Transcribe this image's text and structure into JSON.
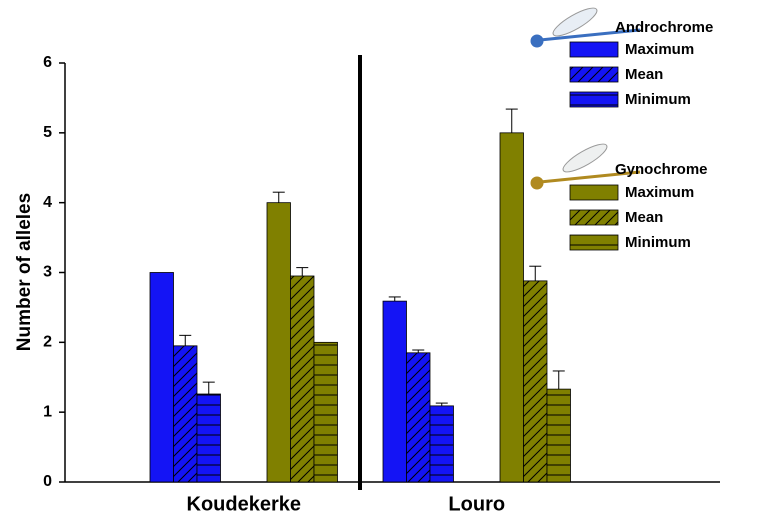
{
  "chart_data": {
    "type": "bar",
    "ylabel": "Number of alleles",
    "categories": [
      "Koudekerke",
      "Louro"
    ],
    "ylim": [
      0,
      6
    ],
    "yticks": [
      0,
      1,
      2,
      3,
      4,
      5,
      6
    ],
    "legend_titles": [
      "Androchrome",
      "Gynochrome"
    ],
    "series": [
      {
        "name": "Maximum",
        "color": "#1414f5",
        "pattern": "solid",
        "values": [
          3.0,
          2.59
        ],
        "errors": [
          0,
          0.06
        ]
      },
      {
        "name": "Mean",
        "color": "#1414f5",
        "pattern": "diagonal",
        "values": [
          1.95,
          1.85
        ],
        "errors": [
          0.15,
          0.04
        ]
      },
      {
        "name": "Minimum",
        "color": "#1414f5",
        "pattern": "horizontal",
        "values": [
          1.26,
          1.09
        ],
        "errors": [
          0.17,
          0.04
        ]
      },
      {
        "name": "Maximum",
        "color": "#808000",
        "pattern": "solid",
        "values": [
          4.0,
          5.0
        ],
        "errors": [
          0.15,
          0.34
        ]
      },
      {
        "name": "Mean",
        "color": "#808000",
        "pattern": "diagonal",
        "values": [
          2.95,
          2.88
        ],
        "errors": [
          0.12,
          0.21
        ]
      },
      {
        "name": "Minimum",
        "color": "#808000",
        "pattern": "horizontal",
        "values": [
          2.0,
          1.33
        ],
        "errors": [
          0,
          0.26
        ]
      }
    ]
  }
}
